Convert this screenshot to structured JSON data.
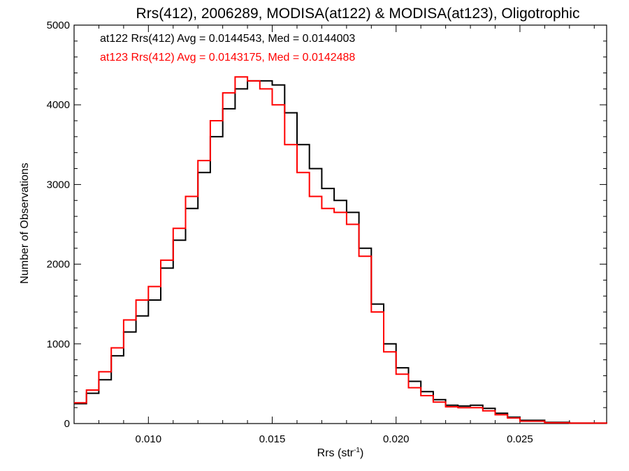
{
  "chart_data": {
    "type": "line",
    "step": true,
    "title": "Rrs(412), 2006289, MODISA(at122) & MODISA(at123), Oligotrophic",
    "xlabel_main": "Rrs (str",
    "xlabel_sup": "-1",
    "xlabel_close": ")",
    "ylabel": "Number of Observations",
    "xlim": [
      0.007,
      0.0285
    ],
    "ylim": [
      0,
      5000
    ],
    "xticks": [
      0.01,
      0.015,
      0.02,
      0.025
    ],
    "xtick_labels": [
      "0.010",
      "0.015",
      "0.020",
      "0.025"
    ],
    "yticks": [
      0,
      1000,
      2000,
      3000,
      4000,
      5000
    ],
    "ytick_labels": [
      "0",
      "1000",
      "2000",
      "3000",
      "4000",
      "5000"
    ],
    "legend_placement": "top-left",
    "annotations": [
      {
        "text": "at122 Rrs(412) Avg = 0.0144543, Med = 0.0144003",
        "color": "#000000"
      },
      {
        "text": "at123 Rrs(412) Avg = 0.0143175, Med = 0.0142488",
        "color": "#ff0000"
      }
    ],
    "series": [
      {
        "color": "#000000",
        "x": [
          0.007,
          0.0075,
          0.008,
          0.0085,
          0.009,
          0.0095,
          0.01,
          0.0105,
          0.011,
          0.0115,
          0.012,
          0.0125,
          0.013,
          0.0135,
          0.014,
          0.0145,
          0.015,
          0.0155,
          0.016,
          0.0165,
          0.017,
          0.0175,
          0.018,
          0.0185,
          0.019,
          0.0195,
          0.02,
          0.0205,
          0.021,
          0.0215,
          0.022,
          0.0225,
          0.023,
          0.0235,
          0.024,
          0.0245,
          0.025,
          0.026,
          0.027,
          0.0285
        ],
        "y": [
          250,
          380,
          550,
          850,
          1150,
          1350,
          1550,
          1950,
          2300,
          2700,
          3150,
          3600,
          3950,
          4200,
          4300,
          4300,
          4250,
          3900,
          3500,
          3200,
          2950,
          2800,
          2650,
          2200,
          1500,
          1000,
          700,
          530,
          400,
          300,
          230,
          220,
          230,
          190,
          130,
          80,
          40,
          15,
          5,
          0
        ]
      },
      {
        "color": "#ff0000",
        "x": [
          0.007,
          0.0075,
          0.008,
          0.0085,
          0.009,
          0.0095,
          0.01,
          0.0105,
          0.011,
          0.0115,
          0.012,
          0.0125,
          0.013,
          0.0135,
          0.014,
          0.0145,
          0.015,
          0.0155,
          0.016,
          0.0165,
          0.017,
          0.0175,
          0.018,
          0.0185,
          0.019,
          0.0195,
          0.02,
          0.0205,
          0.021,
          0.0215,
          0.022,
          0.0225,
          0.023,
          0.0235,
          0.024,
          0.0245,
          0.025,
          0.026,
          0.027,
          0.0285
        ],
        "y": [
          260,
          420,
          650,
          950,
          1300,
          1550,
          1720,
          2050,
          2450,
          2850,
          3300,
          3800,
          4150,
          4350,
          4300,
          4200,
          4000,
          3500,
          3150,
          2850,
          2700,
          2650,
          2500,
          2100,
          1400,
          900,
          620,
          450,
          350,
          270,
          210,
          200,
          200,
          160,
          110,
          70,
          30,
          10,
          5,
          0
        ]
      }
    ]
  }
}
